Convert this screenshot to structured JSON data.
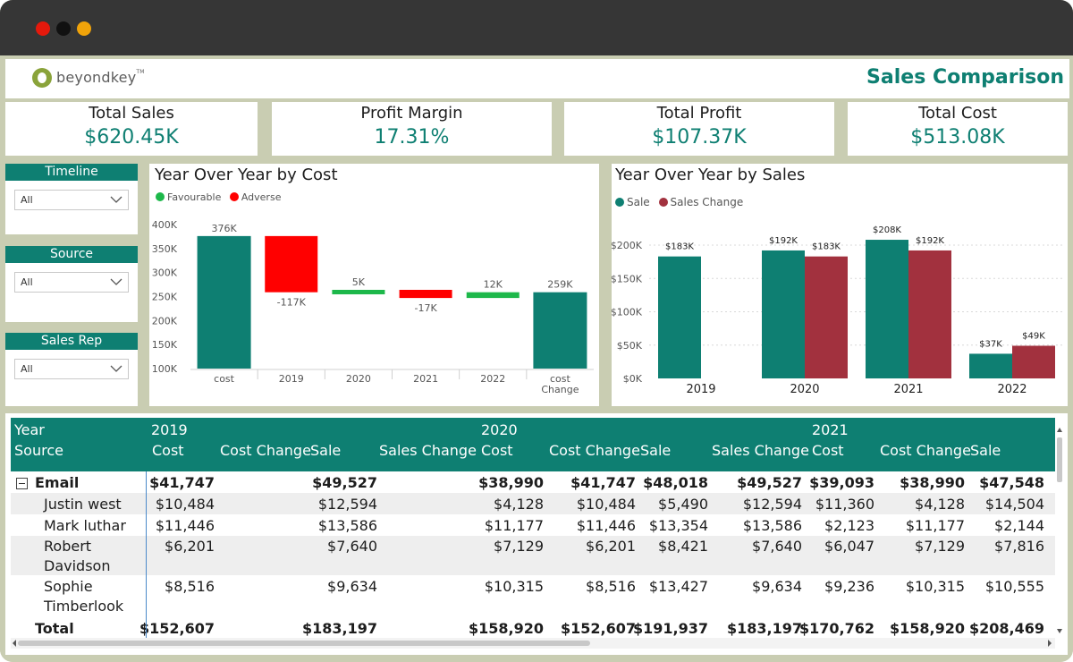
{
  "window": {
    "dot_colors": [
      "#e5190c",
      "#111111",
      "#f0a30a"
    ]
  },
  "header": {
    "logo_text": "beyondkey",
    "logo_tm": "TM",
    "title": "Sales Comparison"
  },
  "kpis": [
    {
      "label": "Total Sales",
      "value": "$620.45K"
    },
    {
      "label": "Profit Margin",
      "value": "17.31%"
    },
    {
      "label": "Total Profit",
      "value": "$107.37K"
    },
    {
      "label": "Total Cost",
      "value": "$513.08K"
    }
  ],
  "slicers": [
    {
      "title": "Timeline",
      "value": "All"
    },
    {
      "title": "Source",
      "value": "All"
    },
    {
      "title": "Sales Rep",
      "value": "All"
    }
  ],
  "colors": {
    "teal": "#0e7f72",
    "red": "#ff0000",
    "green": "#1db84a",
    "maroon": "#a2313e",
    "background": "#c9cdb2"
  },
  "chart_data": [
    {
      "type": "bar",
      "subtype": "waterfall",
      "title": "Year Over Year by Cost",
      "legend": [
        {
          "name": "Favourable",
          "color": "#1db84a"
        },
        {
          "name": "Adverse",
          "color": "#ff0000"
        }
      ],
      "legend_position": "top-left",
      "categories": [
        "cost",
        "2019",
        "2020",
        "2021",
        "2022",
        "cost Change"
      ],
      "bars": [
        {
          "category": "cost",
          "start": 100,
          "end": 376,
          "kind": "total",
          "label": "376K"
        },
        {
          "category": "2019",
          "start": 376,
          "end": 259,
          "kind": "adverse",
          "label": "-117K"
        },
        {
          "category": "2020",
          "start": 259,
          "end": 264,
          "kind": "favourable",
          "label": "5K"
        },
        {
          "category": "2021",
          "start": 264,
          "end": 247,
          "kind": "adverse",
          "label": "-17K"
        },
        {
          "category": "2022",
          "start": 247,
          "end": 259,
          "kind": "favourable",
          "label": "12K"
        },
        {
          "category": "cost Change",
          "start": 100,
          "end": 259,
          "kind": "total",
          "label": "259K"
        }
      ],
      "y_ticks": [
        "400K",
        "350K",
        "300K",
        "250K",
        "200K",
        "150K",
        "100K"
      ],
      "ylim": [
        100,
        400
      ],
      "y_unit": "K",
      "grid": false
    },
    {
      "type": "bar",
      "title": "Year Over Year by Sales",
      "legend_position": "top-left",
      "categories": [
        "2019",
        "2020",
        "2021",
        "2022"
      ],
      "series": [
        {
          "name": "Sale",
          "color": "#0e7f72",
          "values": [
            183,
            192,
            208,
            37
          ],
          "labels": [
            "$183K",
            "$192K",
            "$208K",
            "$37K"
          ]
        },
        {
          "name": "Sales Change",
          "color": "#a2313e",
          "values": [
            null,
            183,
            192,
            49
          ],
          "labels": [
            "",
            "$183K",
            "$192K",
            "$49K"
          ]
        }
      ],
      "y_ticks": [
        "$200K",
        "$150K",
        "$100K",
        "$50K",
        "$0K"
      ],
      "ylim": [
        0,
        200
      ],
      "y_unit": "K",
      "grid": true
    }
  ],
  "table": {
    "header_year_label": "Year",
    "header_source_label": "Source",
    "years": [
      "2019",
      "2020",
      "2021"
    ],
    "columns": [
      "Cost",
      "Cost Change",
      "Sale",
      "Sales Change",
      "Cost",
      "Cost Change",
      "Sale",
      "Sales Change",
      "Cost",
      "Cost Change",
      "Sale"
    ],
    "group": {
      "name": "Email",
      "values": [
        "$41,747",
        "",
        "$49,527",
        "",
        "$38,990",
        "$41,747",
        "$48,018",
        "$49,527",
        "$39,093",
        "$38,990",
        "$47,548"
      ]
    },
    "rows": [
      {
        "name": [
          "Justin west"
        ],
        "values": [
          "$10,484",
          "",
          "$12,594",
          "",
          "$4,128",
          "$10,484",
          "$5,490",
          "$12,594",
          "$11,360",
          "$4,128",
          "$14,504"
        ]
      },
      {
        "name": [
          "Mark luthar"
        ],
        "values": [
          "$11,446",
          "",
          "$13,586",
          "",
          "$11,177",
          "$11,446",
          "$13,354",
          "$13,586",
          "$2,123",
          "$11,177",
          "$2,144"
        ]
      },
      {
        "name": [
          "Robert",
          "Davidson"
        ],
        "values": [
          "$6,201",
          "",
          "$7,640",
          "",
          "$7,129",
          "$6,201",
          "$8,421",
          "$7,640",
          "$6,047",
          "$7,129",
          "$7,816"
        ]
      },
      {
        "name": [
          "Sophie",
          "Timberlook"
        ],
        "values": [
          "$8,516",
          "",
          "$9,634",
          "",
          "$10,315",
          "$8,516",
          "$13,427",
          "$9,634",
          "$9,236",
          "$10,315",
          "$10,555"
        ]
      }
    ],
    "total": {
      "name": "Total",
      "values": [
        "$152,607",
        "",
        "$183,197",
        "",
        "$158,920",
        "$152,607",
        "$191,937",
        "$183,197",
        "$170,762",
        "$158,920",
        "$208,469"
      ]
    }
  }
}
